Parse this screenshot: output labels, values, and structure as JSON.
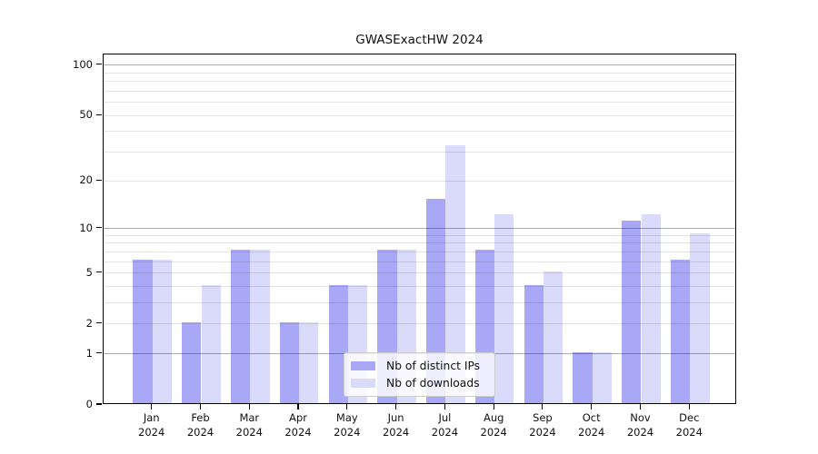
{
  "chart_data": {
    "type": "bar",
    "title": "GWASExactHW 2024",
    "x_tick_year": "2024",
    "categories": [
      "Jan",
      "Feb",
      "Mar",
      "Apr",
      "May",
      "Jun",
      "Jul",
      "Aug",
      "Sep",
      "Oct",
      "Nov",
      "Dec"
    ],
    "series": [
      {
        "name": "Nb of distinct IPs",
        "color": "#a8a8f7",
        "values": [
          6,
          2,
          7,
          2,
          4,
          7,
          15,
          7,
          4,
          1,
          11,
          6
        ]
      },
      {
        "name": "Nb of downloads",
        "color": "#dadafa",
        "values": [
          6,
          4,
          7,
          2,
          4,
          7,
          32,
          12,
          5,
          1,
          12,
          9
        ]
      }
    ],
    "yscale": "log1p",
    "ylim": [
      0,
      117
    ],
    "yticks": [
      0,
      1,
      2,
      5,
      10,
      20,
      50,
      100
    ],
    "minor_gridlines": [
      3,
      4,
      6,
      7,
      8,
      9,
      30,
      40,
      60,
      70,
      80,
      90
    ],
    "decade_gridlines": [
      1,
      10,
      100
    ],
    "grid": true,
    "legend_position": "inside-bottom-center",
    "colors": {
      "axis": "#000000",
      "grid_minor": "rgba(0,0,0,0.10)",
      "grid_decade": "rgba(0,0,0,0.32)",
      "text": "#111111",
      "background": "#ffffff"
    }
  }
}
